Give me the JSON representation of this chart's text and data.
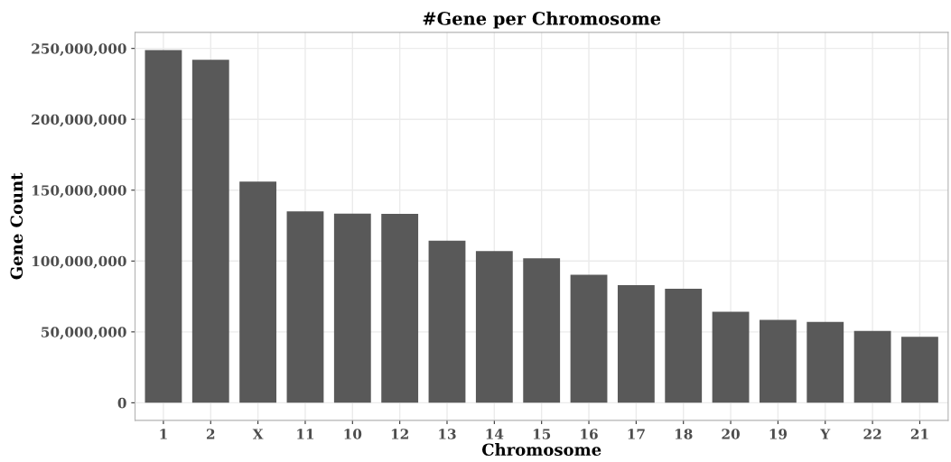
{
  "chart_data": {
    "type": "bar",
    "title": "#Gene per Chromosome",
    "xlabel": "Chromosome",
    "ylabel": "Gene Count",
    "categories": [
      "1",
      "2",
      "X",
      "11",
      "10",
      "12",
      "13",
      "14",
      "15",
      "16",
      "17",
      "18",
      "20",
      "19",
      "Y",
      "22",
      "21"
    ],
    "values": [
      248900000,
      242000000,
      156000000,
      135000000,
      133500000,
      133300000,
      114300000,
      107000000,
      102000000,
      90300000,
      83000000,
      80400000,
      64200000,
      58500000,
      57000000,
      50700000,
      46600000
    ],
    "color": "#595959",
    "ylim": [
      -12450000,
      261350000
    ],
    "yticks": [
      {
        "value": 0,
        "label": "0"
      },
      {
        "value": 50000000,
        "label": "50,000,000"
      },
      {
        "value": 100000000,
        "label": "100,000,000"
      },
      {
        "value": 150000000,
        "label": "150,000,000"
      },
      {
        "value": 200000000,
        "label": "200,000,000"
      },
      {
        "value": 250000000,
        "label": "250,000,000"
      }
    ],
    "grid": true
  }
}
